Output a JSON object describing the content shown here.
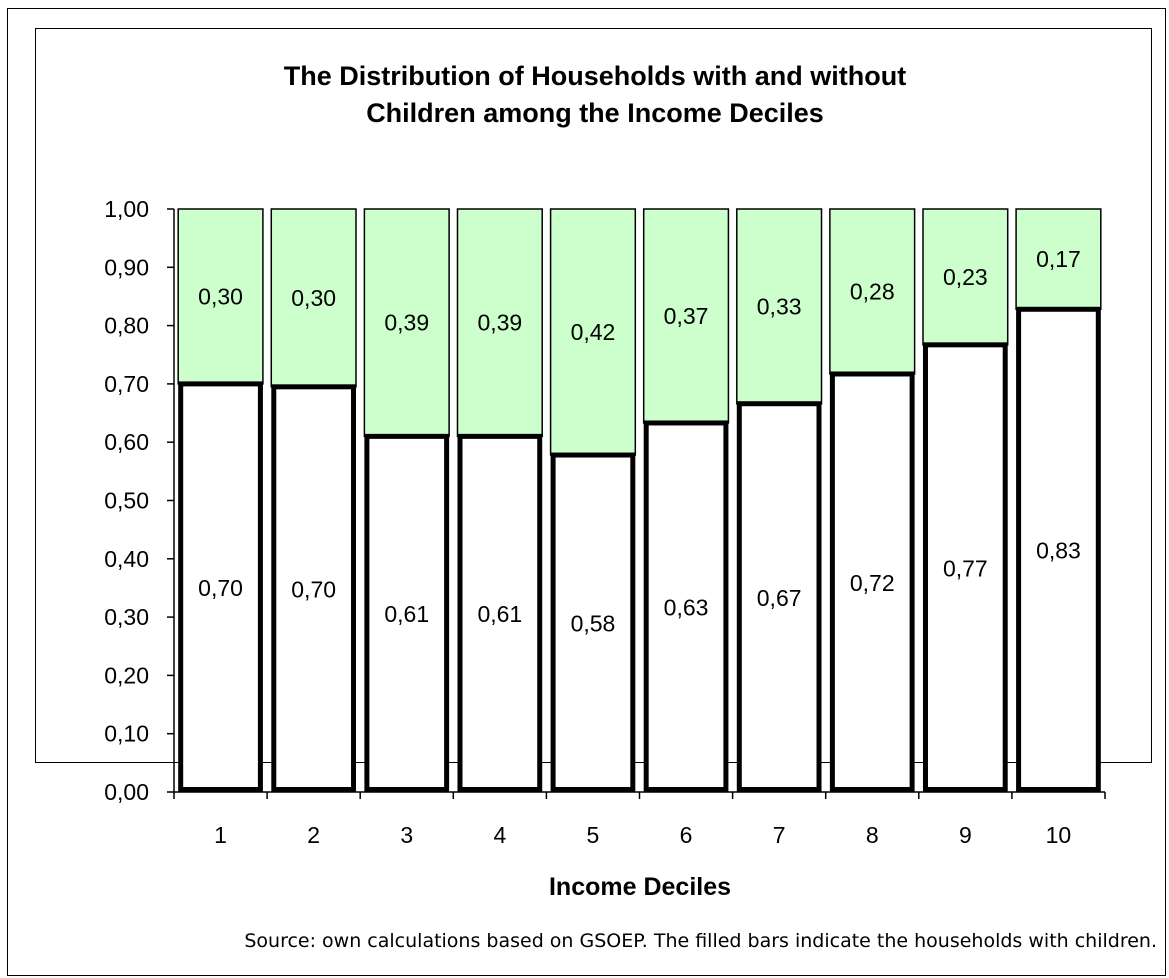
{
  "chart_data": {
    "type": "bar",
    "stacked": true,
    "title_lines": [
      "The Distribution of Households with and without",
      "Children among the Income Deciles"
    ],
    "xlabel": "Income Deciles",
    "ylabel": "",
    "categories": [
      "1",
      "2",
      "3",
      "4",
      "5",
      "6",
      "7",
      "8",
      "9",
      "10"
    ],
    "ylim": [
      0,
      1
    ],
    "yticks": [
      "0,00",
      "0,10",
      "0,20",
      "0,30",
      "0,40",
      "0,50",
      "0,60",
      "0,70",
      "0,80",
      "0,90",
      "1,00"
    ],
    "series": [
      {
        "values": [
          0.7,
          0.695,
          0.61,
          0.61,
          0.578,
          0.633,
          0.666,
          0.717,
          0.767,
          0.828
        ],
        "labels": [
          "0,70",
          "0,70",
          "0,61",
          "0,61",
          "0,58",
          "0,63",
          "0,67",
          "0,72",
          "0,77",
          "0,83"
        ],
        "color": "#ffffff"
      },
      {
        "values": [
          0.3,
          0.305,
          0.39,
          0.39,
          0.422,
          0.367,
          0.334,
          0.283,
          0.233,
          0.172
        ],
        "labels": [
          "0,30",
          "0,30",
          "0,39",
          "0,39",
          "0,42",
          "0,37",
          "0,33",
          "0,28",
          "0,23",
          "0,17"
        ],
        "color": "#ccffcc"
      }
    ],
    "grid": false,
    "legend": "none"
  },
  "source_note": "Source: own calculations based on GSOEP. The filled bars indicate the households with children."
}
